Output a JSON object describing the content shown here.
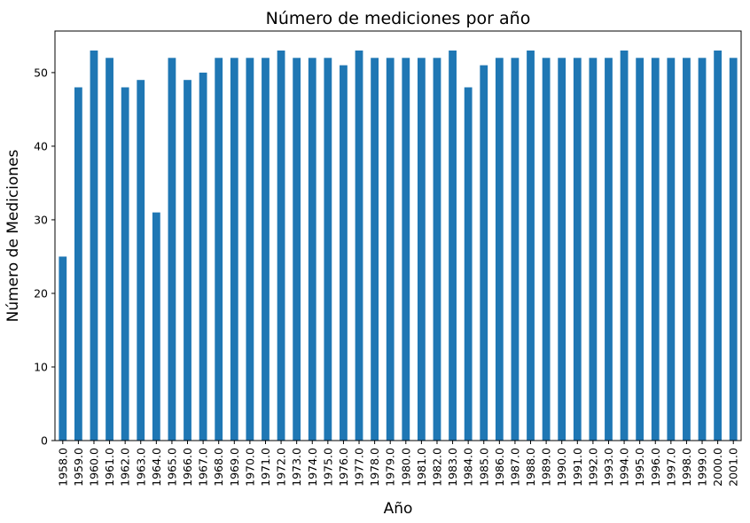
{
  "chart_data": {
    "type": "bar",
    "title": "Número de mediciones por año",
    "xlabel": "Año",
    "ylabel": "Número de Mediciones",
    "categories": [
      "1958.0",
      "1959.0",
      "1960.0",
      "1961.0",
      "1962.0",
      "1963.0",
      "1964.0",
      "1965.0",
      "1966.0",
      "1967.0",
      "1968.0",
      "1969.0",
      "1970.0",
      "1971.0",
      "1972.0",
      "1973.0",
      "1974.0",
      "1975.0",
      "1976.0",
      "1977.0",
      "1978.0",
      "1979.0",
      "1980.0",
      "1981.0",
      "1982.0",
      "1983.0",
      "1984.0",
      "1985.0",
      "1986.0",
      "1987.0",
      "1988.0",
      "1989.0",
      "1990.0",
      "1991.0",
      "1992.0",
      "1993.0",
      "1994.0",
      "1995.0",
      "1996.0",
      "1997.0",
      "1998.0",
      "1999.0",
      "2000.0",
      "2001.0"
    ],
    "values": [
      25,
      48,
      53,
      52,
      48,
      49,
      31,
      52,
      49,
      50,
      52,
      52,
      52,
      52,
      53,
      52,
      52,
      52,
      51,
      53,
      52,
      52,
      52,
      52,
      52,
      53,
      48,
      51,
      52,
      52,
      53,
      52,
      52,
      52,
      52,
      52,
      53,
      52,
      52,
      52,
      52,
      52,
      53,
      52
    ],
    "ylim": [
      0,
      55.65
    ],
    "yticks": [
      0,
      10,
      20,
      30,
      40,
      50
    ],
    "bar_color": "#1f77b4",
    "grid": false,
    "legend": "none"
  }
}
